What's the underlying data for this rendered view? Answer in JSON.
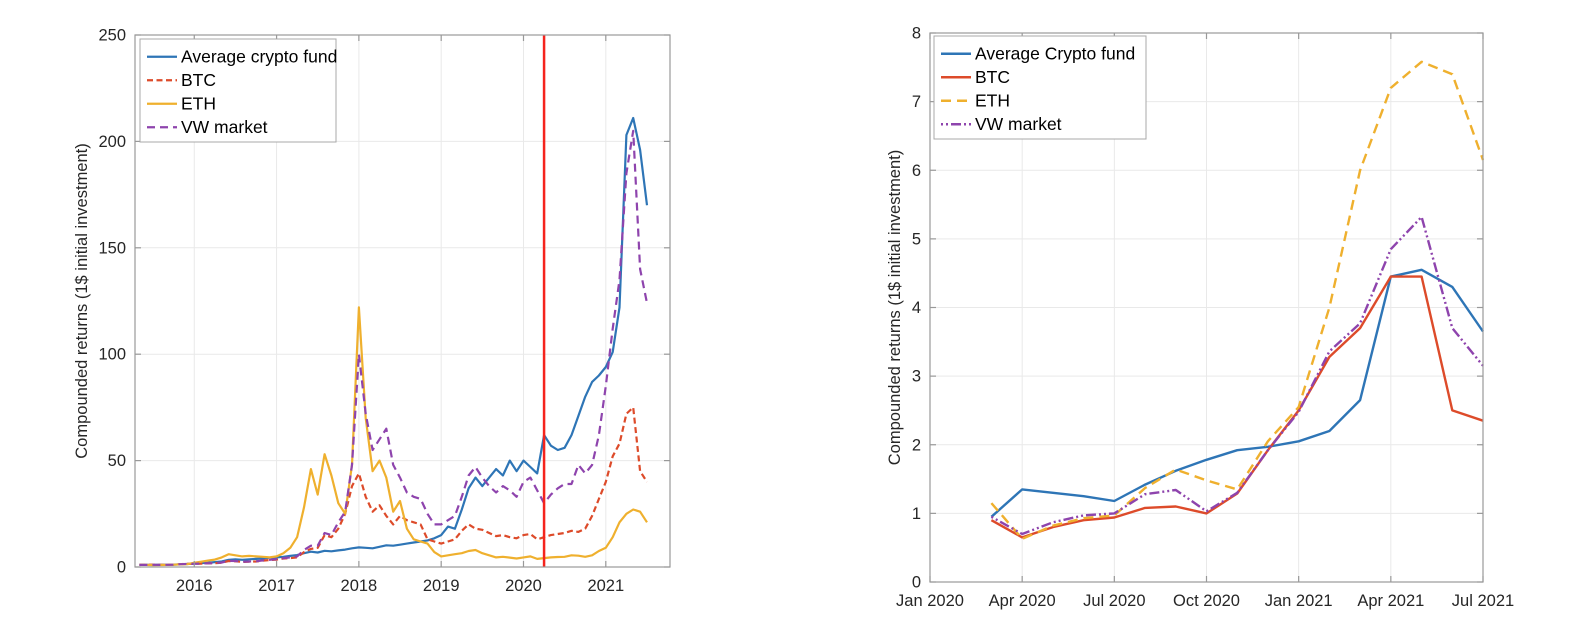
{
  "page": {
    "background": "#ffffff",
    "description": "Two MATLAB-style line charts of crypto fund compounded returns"
  },
  "colors": {
    "fund_blue": "#2e75b6",
    "btc_orange_red": "#dd4b2a",
    "eth_yellow": "#efb02e",
    "vw_purple": "#8e44ad",
    "event_line_red": "#f5241d",
    "grid": "#e9e9e9",
    "axis_box": "#999999",
    "tick_text": "#262626",
    "legend_border": "#a8a8a8"
  },
  "chart_data": [
    {
      "id": "left",
      "type": "line",
      "title": "",
      "xlabel": "",
      "ylabel": "Compounded returns (1$ initial investment)",
      "xlim": [
        2015.28,
        2021.78
      ],
      "ylim": [
        0,
        250
      ],
      "grid": true,
      "legend_position": "top-left",
      "xticks": [
        {
          "v": 2016,
          "label": "2016"
        },
        {
          "v": 2017,
          "label": "2017"
        },
        {
          "v": 2018,
          "label": "2018"
        },
        {
          "v": 2019,
          "label": "2019"
        },
        {
          "v": 2020,
          "label": "2020"
        },
        {
          "v": 2021,
          "label": "2021"
        }
      ],
      "yticks": [
        {
          "v": 0,
          "label": "0"
        },
        {
          "v": 50,
          "label": "50"
        },
        {
          "v": 100,
          "label": "100"
        },
        {
          "v": 150,
          "label": "150"
        },
        {
          "v": 200,
          "label": "200"
        },
        {
          "v": 250,
          "label": "250"
        }
      ],
      "vline": {
        "x": 2020.25,
        "color": "#f5241d",
        "width": 2.5
      },
      "series": [
        {
          "name": "Average crypto fund",
          "color": "#2e75b6",
          "dash": "",
          "width": 2.2,
          "start_year": 2015,
          "start_month": 5,
          "values": [
            1.0,
            1.0,
            1.05,
            1.1,
            1.1,
            1.15,
            1.25,
            1.4,
            1.6,
            1.8,
            2.0,
            2.3,
            2.6,
            3.4,
            3.6,
            3.4,
            3.6,
            3.8,
            4.0,
            4.4,
            4.5,
            4.8,
            5.2,
            5.6,
            6.5,
            7.2,
            6.8,
            7.6,
            7.4,
            7.8,
            8.2,
            8.8,
            9.2,
            9.0,
            8.8,
            9.5,
            10.2,
            10.0,
            10.5,
            11.0,
            11.5,
            12.0,
            12.5,
            13.5,
            15,
            19,
            18,
            27,
            37,
            42,
            38,
            42,
            46,
            43,
            50,
            45,
            50,
            47,
            44,
            62,
            57,
            55,
            56,
            62,
            71,
            80,
            87,
            90,
            94,
            101,
            122,
            203,
            211,
            196,
            170
          ]
        },
        {
          "name": "BTC",
          "color": "#dd4b2a",
          "dash": "6 3.5",
          "width": 2.2,
          "start_year": 2015,
          "start_month": 5,
          "values": [
            1.0,
            1.05,
            1.1,
            1.0,
            1.05,
            1.1,
            1.3,
            1.5,
            1.5,
            1.6,
            1.7,
            1.8,
            2.0,
            2.8,
            2.7,
            2.4,
            2.5,
            2.6,
            3.0,
            3.3,
            3.5,
            4.0,
            4.2,
            4.5,
            7.0,
            8.5,
            9.0,
            15,
            14,
            18,
            25,
            38,
            44,
            33,
            26,
            29,
            24,
            20,
            24,
            22,
            21,
            20,
            13,
            12,
            11,
            12,
            13,
            17,
            20,
            18,
            17.5,
            16,
            14.5,
            15,
            14,
            13.5,
            15,
            15.5,
            13,
            14,
            15,
            15.5,
            16,
            17,
            16.5,
            18,
            24,
            32,
            40,
            52,
            58,
            72,
            75,
            45,
            40
          ]
        },
        {
          "name": "ETH",
          "color": "#efb02e",
          "dash": "",
          "width": 2.2,
          "start_year": 2015,
          "start_month": 5,
          "values": [
            1.0,
            1.0,
            0.9,
            0.95,
            1.0,
            1.1,
            1.2,
            1.3,
            2.0,
            2.5,
            3.0,
            3.5,
            4.5,
            6.0,
            5.5,
            5.0,
            5.2,
            5.0,
            4.8,
            4.5,
            5.0,
            6.5,
            9.0,
            14,
            28,
            46,
            34,
            53,
            43,
            30,
            25,
            48,
            122,
            70,
            45,
            50,
            42,
            26,
            31,
            18,
            13,
            12,
            11,
            7,
            5.0,
            5.5,
            6.0,
            6.5,
            7.5,
            8.0,
            6.5,
            5.5,
            4.5,
            4.8,
            4.4,
            4.0,
            4.5,
            5.0,
            3.8,
            4.2,
            4.5,
            4.7,
            4.8,
            5.5,
            5.3,
            4.8,
            5.5,
            7.5,
            9,
            14,
            21,
            25,
            27,
            26,
            21
          ]
        },
        {
          "name": "VW market",
          "color": "#8e44ad",
          "dash": "8 5",
          "width": 2.2,
          "start_year": 2015,
          "start_month": 5,
          "values": [
            1.0,
            1.0,
            1.05,
            1.0,
            1.05,
            1.1,
            1.3,
            1.45,
            1.5,
            1.6,
            1.75,
            1.9,
            2.1,
            2.9,
            2.8,
            2.5,
            2.6,
            2.7,
            3.1,
            3.4,
            3.7,
            4.2,
            4.5,
            5.0,
            8.0,
            10.0,
            10.0,
            16,
            15,
            21,
            26,
            48,
            100,
            72,
            55,
            60,
            65,
            48,
            42,
            35,
            33,
            32,
            25,
            20,
            20,
            22,
            24,
            33,
            43,
            47,
            42,
            38,
            35,
            38,
            36,
            33,
            40,
            42,
            36,
            30,
            34,
            37,
            39,
            39,
            48,
            44,
            48,
            62,
            85,
            112,
            135,
            185,
            205,
            140,
            124
          ]
        }
      ]
    },
    {
      "id": "right",
      "type": "line",
      "title": "",
      "xlabel": "",
      "ylabel": "Compounded returns (1$ initial investment)",
      "xlim": [
        2020.0,
        2021.5
      ],
      "ylim": [
        0,
        8
      ],
      "grid": true,
      "legend_position": "top-left",
      "xticks": [
        {
          "v": 2020.0,
          "label": "Jan 2020"
        },
        {
          "v": 2020.25,
          "label": "Apr 2020"
        },
        {
          "v": 2020.5,
          "label": "Jul 2020"
        },
        {
          "v": 2020.75,
          "label": "Oct 2020"
        },
        {
          "v": 2021.0,
          "label": "Jan 2021"
        },
        {
          "v": 2021.25,
          "label": "Apr 2021"
        },
        {
          "v": 2021.5,
          "label": "Jul 2021"
        }
      ],
      "yticks": [
        {
          "v": 0,
          "label": "0"
        },
        {
          "v": 1,
          "label": "1"
        },
        {
          "v": 2,
          "label": "2"
        },
        {
          "v": 3,
          "label": "3"
        },
        {
          "v": 4,
          "label": "4"
        },
        {
          "v": 5,
          "label": "5"
        },
        {
          "v": 6,
          "label": "6"
        },
        {
          "v": 7,
          "label": "7"
        },
        {
          "v": 8,
          "label": "8"
        }
      ],
      "series": [
        {
          "name": "Average Crypto fund",
          "color": "#2e75b6",
          "dash": "",
          "width": 2.4,
          "start_year": 2020,
          "start_month": 3,
          "values": [
            0.95,
            1.35,
            1.3,
            1.25,
            1.18,
            1.42,
            1.62,
            1.78,
            1.92,
            1.97,
            2.05,
            2.2,
            2.65,
            4.45,
            4.55,
            4.3,
            3.65
          ]
        },
        {
          "name": "BTC",
          "color": "#dd4b2a",
          "dash": "",
          "width": 2.4,
          "start_year": 2020,
          "start_month": 3,
          "values": [
            0.9,
            0.65,
            0.8,
            0.9,
            0.94,
            1.08,
            1.1,
            1.0,
            1.29,
            1.92,
            2.5,
            3.28,
            3.7,
            4.45,
            4.45,
            2.5,
            2.35
          ]
        },
        {
          "name": "ETH",
          "color": "#efb02e",
          "dash": "10 6",
          "width": 2.4,
          "start_year": 2020,
          "start_month": 3,
          "values": [
            1.15,
            0.63,
            0.82,
            0.93,
            0.97,
            1.37,
            1.64,
            1.48,
            1.35,
            2.05,
            2.55,
            4.0,
            6.0,
            7.2,
            7.58,
            7.4,
            6.15
          ]
        },
        {
          "name": "VW market",
          "color": "#8e44ad",
          "dash": "2 3 2 3 10 3",
          "width": 2.4,
          "start_year": 2020,
          "start_month": 3,
          "values": [
            0.95,
            0.7,
            0.87,
            0.97,
            1.0,
            1.28,
            1.34,
            1.03,
            1.3,
            1.92,
            2.48,
            3.36,
            3.77,
            4.85,
            5.32,
            3.7,
            3.15
          ]
        }
      ]
    }
  ]
}
